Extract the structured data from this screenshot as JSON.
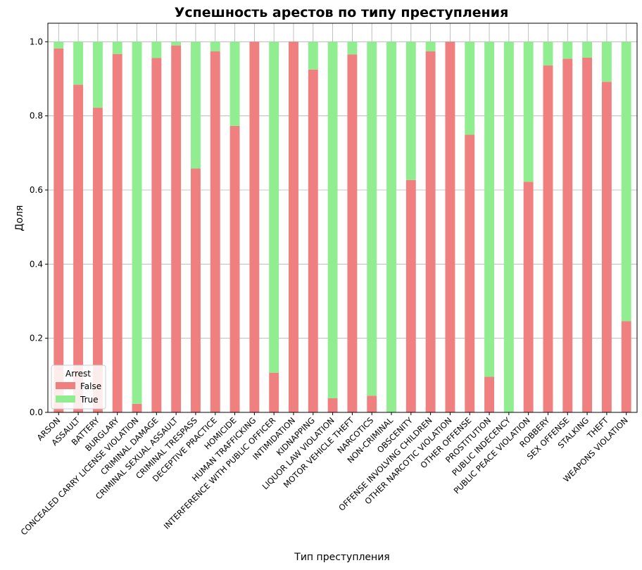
{
  "chart_data": {
    "type": "bar",
    "stacked": true,
    "title": "Успешность арестов по типу преступления",
    "xlabel": "Тип преступления",
    "ylabel": "Доля",
    "ylim": [
      0,
      1.05
    ],
    "yticks": [
      "0.0",
      "0.2",
      "0.4",
      "0.6",
      "0.8",
      "1.0"
    ],
    "grid": true,
    "legend": {
      "title": "Arrest",
      "placement": "lower-left"
    },
    "categories": [
      "ARSON",
      "ASSAULT",
      "BATTERY",
      "BURGLARY",
      "CONCEALED CARRY LICENSE VIOLATION",
      "CRIMINAL DAMAGE",
      "CRIMINAL SEXUAL ASSAULT",
      "CRIMINAL TRESPASS",
      "DECEPTIVE PRACTICE",
      "HOMICIDE",
      "HUMAN TRAFFICKING",
      "INTERFERENCE WITH PUBLIC OFFICER",
      "INTIMIDATION",
      "KIDNAPPING",
      "LIQUOR LAW VIOLATION",
      "MOTOR VEHICLE THEFT",
      "NARCOTICS",
      "NON-CRIMINAL",
      "OBSCENITY",
      "OFFENSE INVOLVING CHILDREN",
      "OTHER NARCOTIC VIOLATION",
      "OTHER OFFENSE",
      "PROSTITUTION",
      "PUBLIC INDECENCY",
      "PUBLIC PEACE VIOLATION",
      "ROBBERY",
      "SEX OFFENSE",
      "STALKING",
      "THEFT",
      "WEAPONS VIOLATION"
    ],
    "series": [
      {
        "name": "False",
        "color": "#f08080",
        "values": [
          0.982,
          0.884,
          0.822,
          0.967,
          0.023,
          0.956,
          0.99,
          0.658,
          0.974,
          0.773,
          1.0,
          0.107,
          1.0,
          0.925,
          0.038,
          0.966,
          0.045,
          0.0,
          0.627,
          0.974,
          1.0,
          0.749,
          0.096,
          0.0,
          0.622,
          0.936,
          0.954,
          0.957,
          0.892,
          0.246
        ]
      },
      {
        "name": "True",
        "color": "#90ee90",
        "values": [
          0.018,
          0.116,
          0.178,
          0.033,
          0.977,
          0.044,
          0.01,
          0.342,
          0.026,
          0.227,
          0.0,
          0.893,
          0.0,
          0.075,
          0.962,
          0.034,
          0.955,
          1.0,
          0.373,
          0.026,
          0.0,
          0.251,
          0.904,
          1.0,
          0.378,
          0.064,
          0.046,
          0.043,
          0.108,
          0.754
        ]
      }
    ]
  }
}
